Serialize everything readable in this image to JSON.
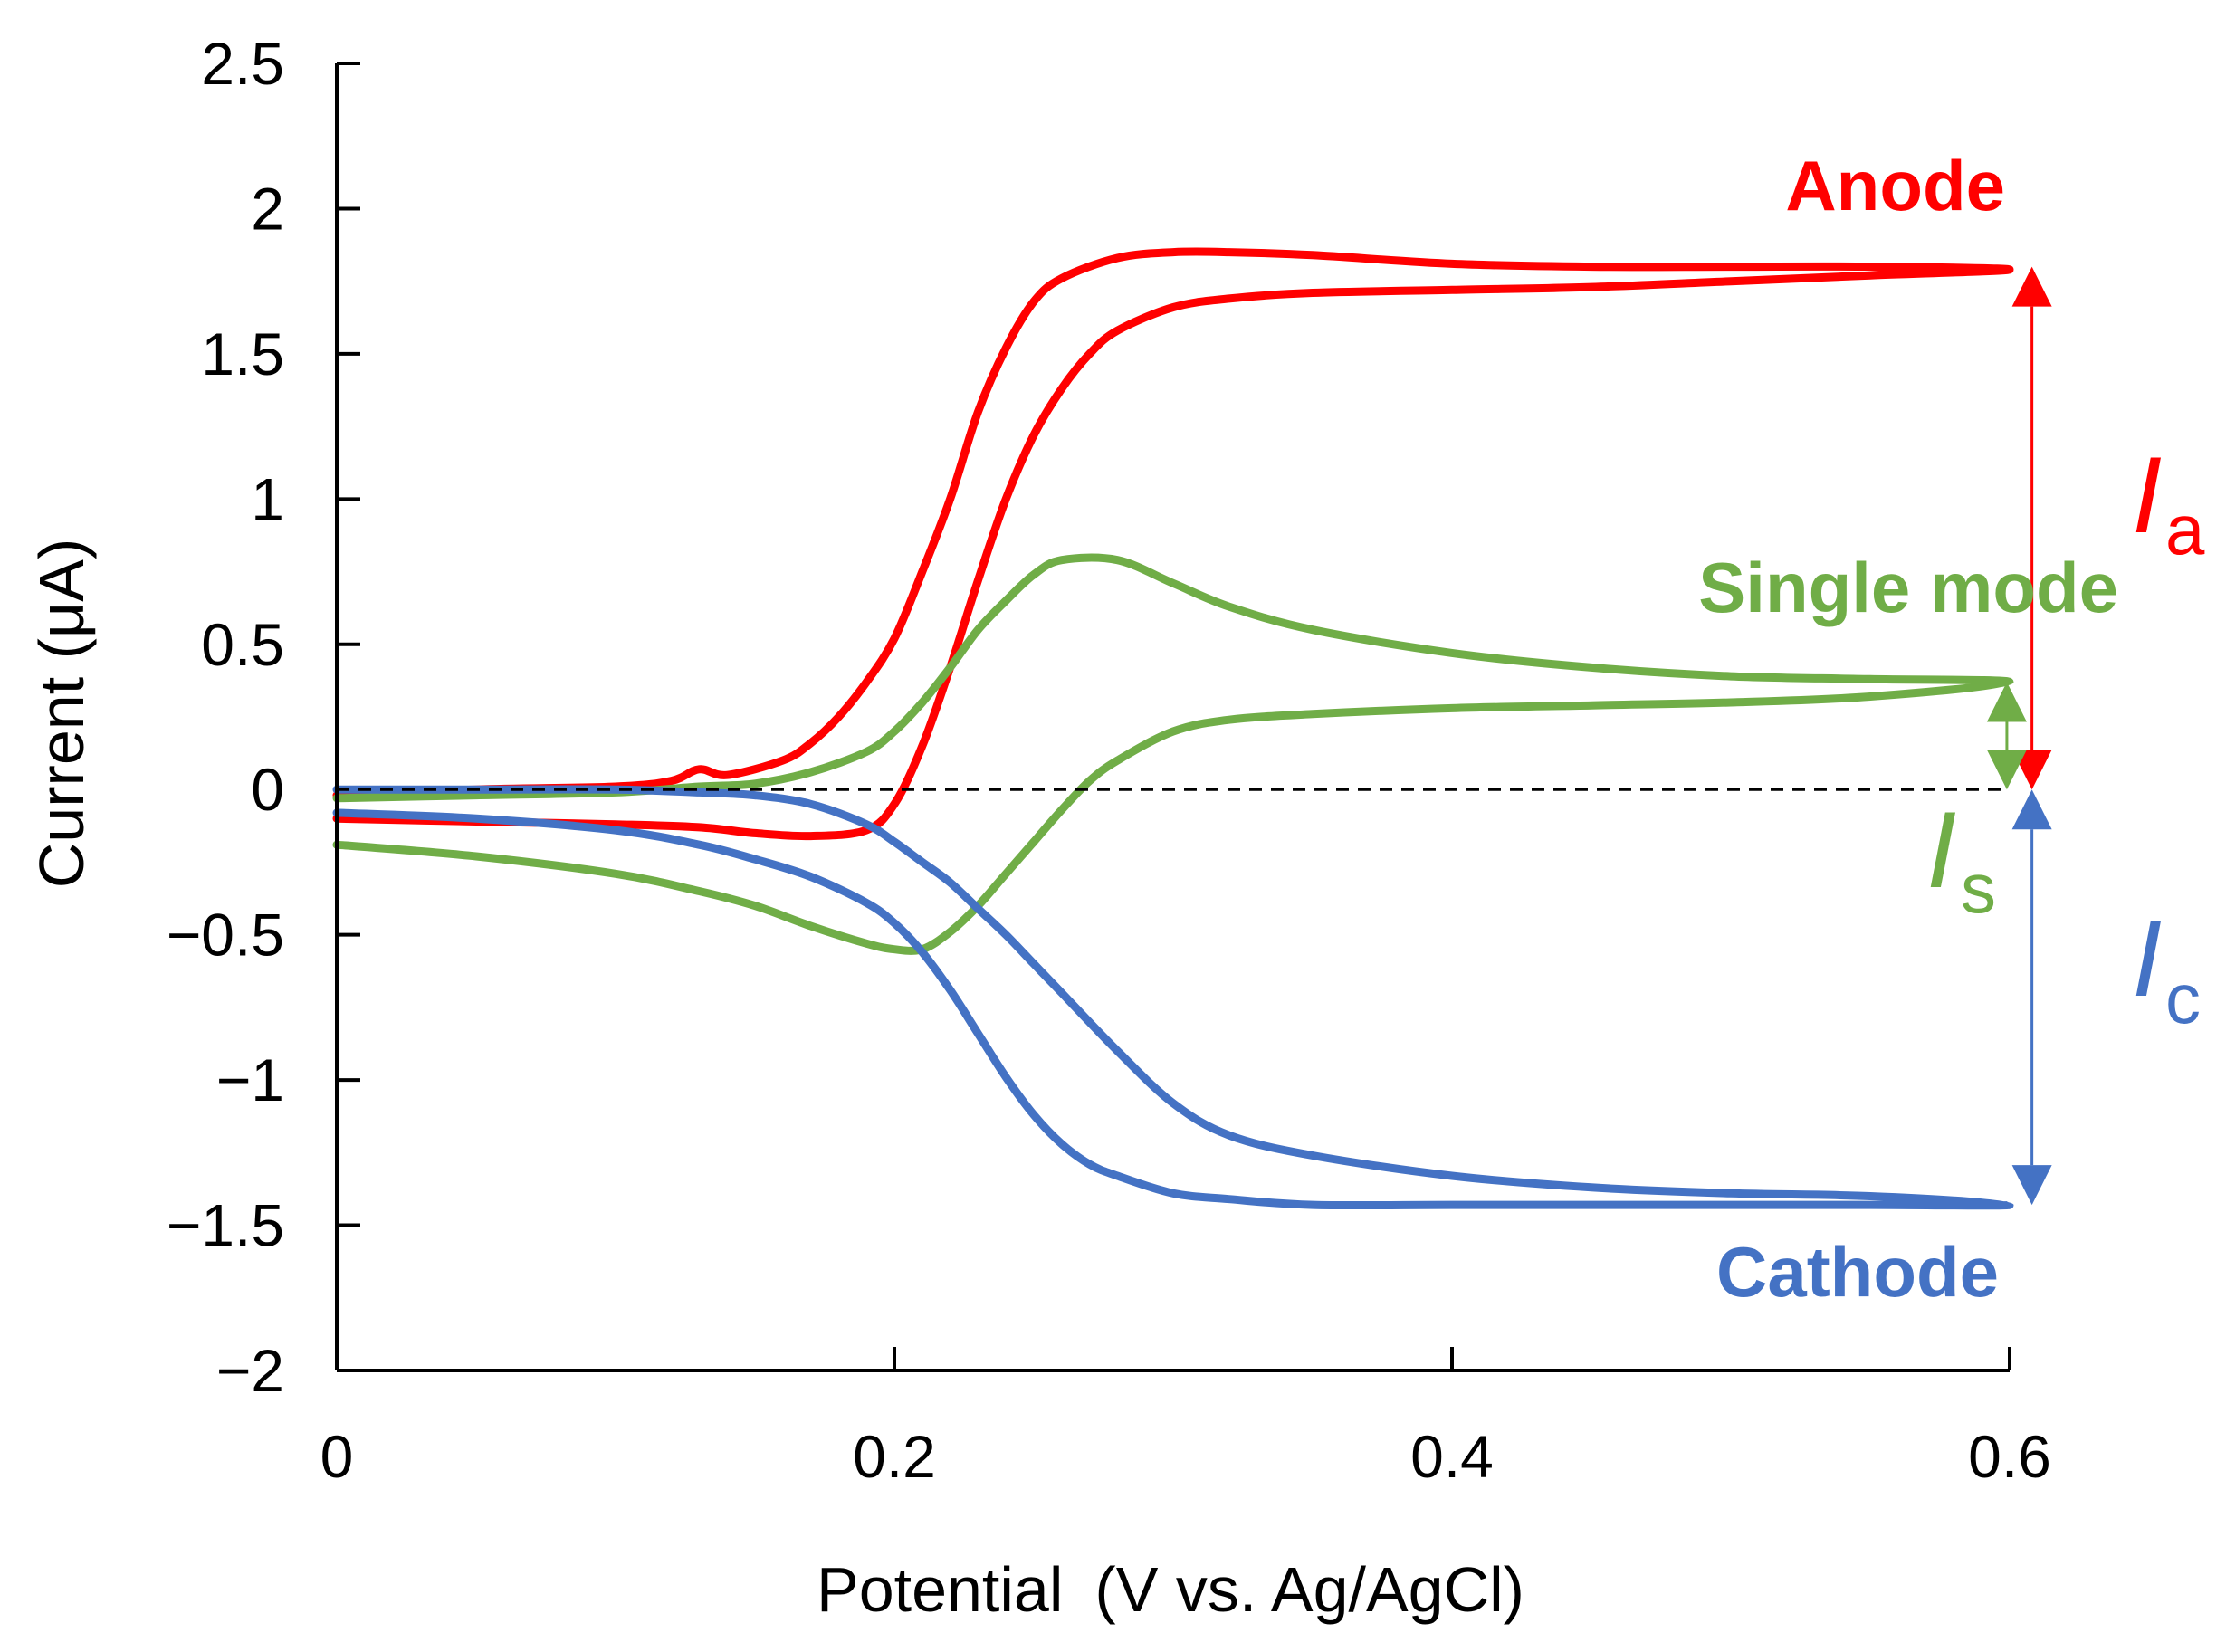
{
  "chart_data": {
    "type": "line",
    "xlabel": "Potential (V vs. Ag/AgCl)",
    "ylabel": "Current (μA)",
    "xlim": [
      0,
      0.6
    ],
    "ylim": [
      -2,
      2.5
    ],
    "x_ticks": [
      "0",
      "0.2",
      "0.4",
      "0.6"
    ],
    "y_ticks": [
      "2.5",
      "2",
      "1.5",
      "1",
      "0.5",
      "0",
      "−0.5",
      "−1",
      "−1.5",
      "−2"
    ],
    "x_tick_values": [
      0,
      0.2,
      0.4,
      0.6
    ],
    "y_tick_values": [
      2.5,
      2,
      1.5,
      1,
      0.5,
      0,
      -0.5,
      -1,
      -1.5,
      -2
    ],
    "zero_line": "dashed",
    "series": [
      {
        "name": "Anode",
        "color": "#ff0000",
        "x": [
          0,
          0.05,
          0.1,
          0.13,
          0.15,
          0.17,
          0.19,
          0.2,
          0.21,
          0.22,
          0.23,
          0.24,
          0.25,
          0.26,
          0.27,
          0.28,
          0.3,
          0.32,
          0.35,
          0.4,
          0.45,
          0.5,
          0.55,
          0.6,
          0.55,
          0.5,
          0.45,
          0.4,
          0.35,
          0.32,
          0.3,
          0.28,
          0.26,
          0.25,
          0.24,
          0.23,
          0.22,
          0.21,
          0.2,
          0.19,
          0.18,
          0.17,
          0.16,
          0.14,
          0.13,
          0.12,
          0.1,
          0.05,
          0
        ],
        "y": [
          -0.1,
          -0.11,
          -0.12,
          -0.13,
          -0.15,
          -0.16,
          -0.14,
          -0.05,
          0.15,
          0.42,
          0.72,
          1.0,
          1.22,
          1.38,
          1.5,
          1.58,
          1.66,
          1.69,
          1.71,
          1.72,
          1.73,
          1.75,
          1.77,
          1.79,
          1.8,
          1.8,
          1.8,
          1.81,
          1.84,
          1.85,
          1.85,
          1.83,
          1.76,
          1.68,
          1.52,
          1.3,
          1.0,
          0.75,
          0.52,
          0.37,
          0.25,
          0.16,
          0.1,
          0.05,
          0.07,
          0.03,
          0.01,
          0.0,
          -0.02
        ]
      },
      {
        "name": "Single mode",
        "color": "#70ad47",
        "x": [
          0,
          0.05,
          0.1,
          0.13,
          0.15,
          0.17,
          0.19,
          0.2,
          0.21,
          0.22,
          0.23,
          0.24,
          0.25,
          0.26,
          0.27,
          0.28,
          0.3,
          0.32,
          0.35,
          0.4,
          0.45,
          0.5,
          0.55,
          0.6,
          0.55,
          0.5,
          0.45,
          0.4,
          0.35,
          0.32,
          0.3,
          0.28,
          0.26,
          0.25,
          0.24,
          0.23,
          0.22,
          0.21,
          0.2,
          0.19,
          0.17,
          0.15,
          0.13,
          0.1,
          0.05,
          0
        ],
        "y": [
          -0.19,
          -0.23,
          -0.29,
          -0.35,
          -0.4,
          -0.47,
          -0.53,
          -0.55,
          -0.55,
          -0.49,
          -0.4,
          -0.29,
          -0.18,
          -0.07,
          0.03,
          0.1,
          0.2,
          0.24,
          0.26,
          0.28,
          0.29,
          0.3,
          0.32,
          0.37,
          0.38,
          0.39,
          0.42,
          0.47,
          0.55,
          0.63,
          0.71,
          0.79,
          0.79,
          0.74,
          0.65,
          0.55,
          0.42,
          0.3,
          0.2,
          0.13,
          0.06,
          0.02,
          0.01,
          -0.01,
          -0.02,
          -0.03
        ]
      },
      {
        "name": "Cathode",
        "color": "#4472c4",
        "x": [
          0,
          0.05,
          0.1,
          0.13,
          0.15,
          0.17,
          0.19,
          0.2,
          0.21,
          0.22,
          0.23,
          0.24,
          0.25,
          0.26,
          0.27,
          0.28,
          0.3,
          0.32,
          0.35,
          0.4,
          0.45,
          0.5,
          0.55,
          0.6,
          0.55,
          0.5,
          0.45,
          0.4,
          0.35,
          0.32,
          0.3,
          0.28,
          0.26,
          0.25,
          0.24,
          0.23,
          0.22,
          0.21,
          0.2,
          0.19,
          0.17,
          0.15,
          0.13,
          0.1,
          0.05,
          0
        ],
        "y": [
          -0.08,
          -0.1,
          -0.14,
          -0.19,
          -0.24,
          -0.3,
          -0.39,
          -0.46,
          -0.56,
          -0.69,
          -0.84,
          -0.99,
          -1.12,
          -1.22,
          -1.29,
          -1.33,
          -1.39,
          -1.41,
          -1.43,
          -1.43,
          -1.43,
          -1.43,
          -1.43,
          -1.43,
          -1.4,
          -1.39,
          -1.37,
          -1.33,
          -1.26,
          -1.19,
          -1.08,
          -0.9,
          -0.7,
          -0.6,
          -0.5,
          -0.41,
          -0.32,
          -0.25,
          -0.18,
          -0.12,
          -0.05,
          -0.02,
          -0.01,
          0.0,
          0.0,
          0.0
        ]
      }
    ],
    "annotations": {
      "anode_label": "Anode",
      "single_label": "Single mode",
      "cathode_label": "Cathode",
      "ia": {
        "symbol": "I",
        "sub": "a",
        "color": "#ff0000",
        "arrow_x": 0.608,
        "from": 0.0,
        "to": 1.8
      },
      "is": {
        "symbol": "I",
        "sub": "s",
        "color": "#70ad47",
        "arrow_x": 0.599,
        "from": 0.0,
        "to": 0.37
      },
      "ic": {
        "symbol": "I",
        "sub": "c",
        "color": "#4472c4",
        "arrow_x": 0.608,
        "from": 0.0,
        "to": -1.43
      }
    }
  }
}
